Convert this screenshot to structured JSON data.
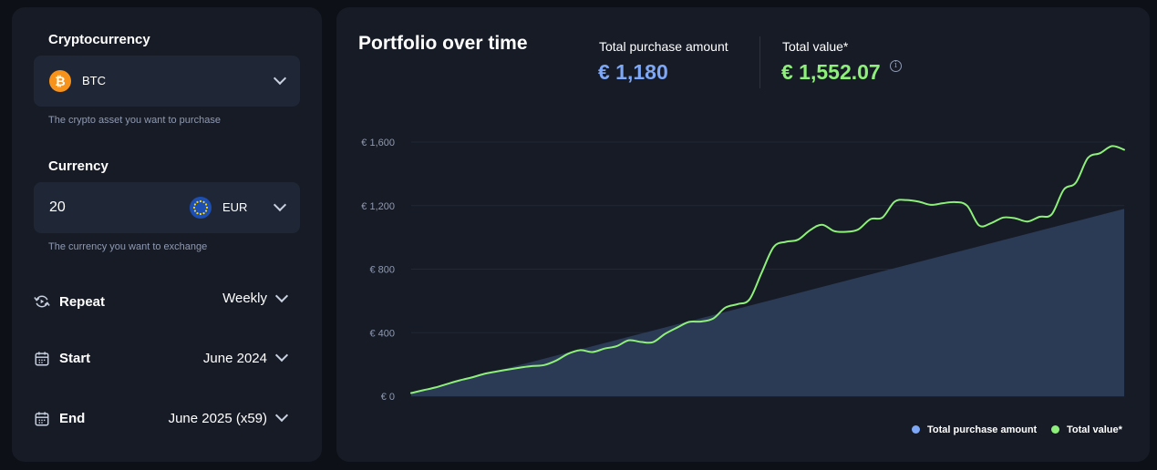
{
  "form": {
    "crypto_title": "Cryptocurrency",
    "crypto_value": "BTC",
    "crypto_icon": "bitcoin-icon",
    "crypto_helper": "The crypto asset you want to purchase",
    "currency_title": "Currency",
    "amount_value": "20",
    "currency_value": "EUR",
    "currency_icon": "eu-flag-icon",
    "currency_helper": "The currency you want to exchange",
    "repeat_label": "Repeat",
    "repeat_value": "Weekly",
    "start_label": "Start",
    "start_value": "June 2024",
    "end_label": "End",
    "end_value": "June 2025 (x59)"
  },
  "summary": {
    "title": "Portfolio over time",
    "purchase_label": "Total purchase amount",
    "purchase_value": "€ 1,180",
    "total_label": "Total value*",
    "total_value": "€ 1,552.07"
  },
  "colors": {
    "purchase": "#7ea7f5",
    "total": "#8ef07a",
    "area": "#2b3a55"
  },
  "chart_data": {
    "type": "area",
    "title": "",
    "xlabel": "",
    "ylabel": "",
    "ylim": [
      0,
      1600
    ],
    "y_ticks": [
      "€ 0",
      "€ 400",
      "€ 800",
      "€ 1,200",
      "€ 1,600"
    ],
    "y_tick_values": [
      0,
      400,
      800,
      1200,
      1600
    ],
    "grid": true,
    "legend": "bottom-right",
    "series": [
      {
        "name": "Total purchase amount",
        "type": "area",
        "start": 20,
        "end": 1180
      },
      {
        "name": "Total value*",
        "type": "line",
        "values": [
          20,
          38,
          55,
          78,
          100,
          118,
          140,
          155,
          168,
          180,
          190,
          196,
          225,
          268,
          290,
          278,
          300,
          315,
          352,
          342,
          340,
          392,
          432,
          468,
          470,
          490,
          558,
          580,
          610,
          778,
          940,
          972,
          985,
          1045,
          1080,
          1040,
          1035,
          1050,
          1115,
          1125,
          1225,
          1235,
          1225,
          1205,
          1215,
          1222,
          1200,
          1075,
          1090,
          1125,
          1120,
          1100,
          1130,
          1145,
          1300,
          1345,
          1500,
          1530,
          1575,
          1552.07
        ]
      }
    ]
  }
}
